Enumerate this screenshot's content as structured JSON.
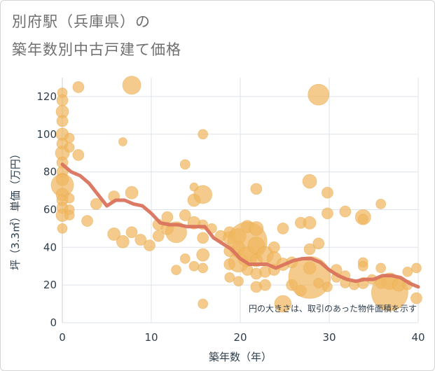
{
  "title_line1": "別府駅（兵庫県）の",
  "title_line2": "築年数別中古戸建て価格",
  "colors": {
    "bubble": "#f0b760",
    "line": "#d9735d",
    "grid": "#dde3ea",
    "axis_text": "#2f3e4d",
    "title": "#6f6f6f"
  },
  "chart_data": {
    "type": "scatter",
    "xlabel": "築年数（年）",
    "ylabel": "坪（3.3㎡）単価（万円）",
    "xlim": [
      0,
      40
    ],
    "ylim": [
      0,
      130
    ],
    "x_ticks": [
      0,
      10,
      20,
      30,
      40
    ],
    "y_ticks": [
      0,
      20,
      40,
      60,
      80,
      100,
      120
    ],
    "grid": true,
    "note": "円の大きさは、取引のあった物件面積を示す",
    "bubbles": [
      {
        "x": 0,
        "y": 122,
        "s": 7
      },
      {
        "x": 0,
        "y": 118,
        "s": 8
      },
      {
        "x": 0,
        "y": 112,
        "s": 9
      },
      {
        "x": 0,
        "y": 107,
        "s": 8
      },
      {
        "x": 0,
        "y": 100,
        "s": 9
      },
      {
        "x": 0,
        "y": 95,
        "s": 8
      },
      {
        "x": 0,
        "y": 90,
        "s": 10
      },
      {
        "x": 0,
        "y": 85,
        "s": 8
      },
      {
        "x": 0,
        "y": 80,
        "s": 8
      },
      {
        "x": 0,
        "y": 76,
        "s": 9
      },
      {
        "x": 0,
        "y": 73,
        "s": 16
      },
      {
        "x": 0,
        "y": 68,
        "s": 9
      },
      {
        "x": 0,
        "y": 65,
        "s": 8
      },
      {
        "x": 0,
        "y": 61,
        "s": 8
      },
      {
        "x": 0,
        "y": 57,
        "s": 9
      },
      {
        "x": 0,
        "y": 50,
        "s": 7
      },
      {
        "x": 0.8,
        "y": 98,
        "s": 7
      },
      {
        "x": 0.8,
        "y": 93,
        "s": 7
      },
      {
        "x": 0.8,
        "y": 66,
        "s": 7
      },
      {
        "x": 0.8,
        "y": 60,
        "s": 7
      },
      {
        "x": 0.8,
        "y": 57,
        "s": 7
      },
      {
        "x": 1.8,
        "y": 125,
        "s": 8
      },
      {
        "x": 1.8,
        "y": 89,
        "s": 8
      },
      {
        "x": 2.8,
        "y": 54,
        "s": 8
      },
      {
        "x": 3.8,
        "y": 63,
        "s": 8
      },
      {
        "x": 5.8,
        "y": 67,
        "s": 8
      },
      {
        "x": 5.8,
        "y": 47,
        "s": 9
      },
      {
        "x": 6.8,
        "y": 96,
        "s": 6
      },
      {
        "x": 6.8,
        "y": 43,
        "s": 9
      },
      {
        "x": 7.8,
        "y": 126,
        "s": 13
      },
      {
        "x": 7.8,
        "y": 69,
        "s": 9
      },
      {
        "x": 7.8,
        "y": 48,
        "s": 8
      },
      {
        "x": 8.8,
        "y": 44,
        "s": 8
      },
      {
        "x": 9.8,
        "y": 41,
        "s": 8
      },
      {
        "x": 10.8,
        "y": 52,
        "s": 8
      },
      {
        "x": 10.8,
        "y": 46,
        "s": 8
      },
      {
        "x": 11.8,
        "y": 56,
        "s": 8
      },
      {
        "x": 11.8,
        "y": 50,
        "s": 9
      },
      {
        "x": 12.8,
        "y": 48,
        "s": 15
      },
      {
        "x": 12.8,
        "y": 28,
        "s": 7
      },
      {
        "x": 13.8,
        "y": 84,
        "s": 7
      },
      {
        "x": 13.8,
        "y": 57,
        "s": 8
      },
      {
        "x": 13.8,
        "y": 34,
        "s": 7
      },
      {
        "x": 14.8,
        "y": 72,
        "s": 6
      },
      {
        "x": 14.8,
        "y": 65,
        "s": 9
      },
      {
        "x": 14.8,
        "y": 53,
        "s": 9
      },
      {
        "x": 14.8,
        "y": 30,
        "s": 7
      },
      {
        "x": 15.8,
        "y": 100,
        "s": 7
      },
      {
        "x": 15.8,
        "y": 68,
        "s": 13
      },
      {
        "x": 15.8,
        "y": 52,
        "s": 7
      },
      {
        "x": 15.8,
        "y": 45,
        "s": 8
      },
      {
        "x": 15.8,
        "y": 36,
        "s": 9
      },
      {
        "x": 15.8,
        "y": 29,
        "s": 7
      },
      {
        "x": 15.8,
        "y": 10,
        "s": 7
      },
      {
        "x": 16.8,
        "y": 50,
        "s": 7
      },
      {
        "x": 17.8,
        "y": 46,
        "s": 8
      },
      {
        "x": 18.8,
        "y": 48,
        "s": 8
      },
      {
        "x": 18.8,
        "y": 45,
        "s": 9
      },
      {
        "x": 18.8,
        "y": 38,
        "s": 8
      },
      {
        "x": 18.8,
        "y": 31,
        "s": 8
      },
      {
        "x": 18.8,
        "y": 24,
        "s": 7
      },
      {
        "x": 19.8,
        "y": 46,
        "s": 11
      },
      {
        "x": 19.8,
        "y": 40,
        "s": 9
      },
      {
        "x": 19.8,
        "y": 32,
        "s": 14
      },
      {
        "x": 19.8,
        "y": 22,
        "s": 7
      },
      {
        "x": 20.8,
        "y": 51,
        "s": 9
      },
      {
        "x": 20.8,
        "y": 43,
        "s": 28
      },
      {
        "x": 20.8,
        "y": 35,
        "s": 14
      },
      {
        "x": 20.8,
        "y": 28,
        "s": 8
      },
      {
        "x": 21.8,
        "y": 71,
        "s": 8
      },
      {
        "x": 21.8,
        "y": 50,
        "s": 10
      },
      {
        "x": 21.8,
        "y": 41,
        "s": 12
      },
      {
        "x": 21.8,
        "y": 33,
        "s": 9
      },
      {
        "x": 21.8,
        "y": 26,
        "s": 8
      },
      {
        "x": 21.8,
        "y": 19,
        "s": 8
      },
      {
        "x": 22.8,
        "y": 36,
        "s": 12
      },
      {
        "x": 22.8,
        "y": 27,
        "s": 8
      },
      {
        "x": 22.8,
        "y": 20,
        "s": 8
      },
      {
        "x": 23.8,
        "y": 40,
        "s": 8
      },
      {
        "x": 23.8,
        "y": 34,
        "s": 10
      },
      {
        "x": 23.8,
        "y": 28,
        "s": 8
      },
      {
        "x": 24.8,
        "y": 50,
        "s": 8
      },
      {
        "x": 24.8,
        "y": 31,
        "s": 9
      },
      {
        "x": 24.8,
        "y": 10,
        "s": 12
      },
      {
        "x": 25.8,
        "y": 32,
        "s": 8
      },
      {
        "x": 25.8,
        "y": 20,
        "s": 8
      },
      {
        "x": 26.8,
        "y": 53,
        "s": 8
      },
      {
        "x": 26.8,
        "y": 17,
        "s": 8
      },
      {
        "x": 27.8,
        "y": 75,
        "s": 10
      },
      {
        "x": 27.8,
        "y": 53,
        "s": 9
      },
      {
        "x": 27.8,
        "y": 39,
        "s": 8
      },
      {
        "x": 27.8,
        "y": 29,
        "s": 9
      },
      {
        "x": 27.8,
        "y": 24,
        "s": 30
      },
      {
        "x": 28.8,
        "y": 121,
        "s": 15
      },
      {
        "x": 28.8,
        "y": 42,
        "s": 8
      },
      {
        "x": 28.8,
        "y": 21,
        "s": 7
      },
      {
        "x": 29.8,
        "y": 69,
        "s": 8
      },
      {
        "x": 29.8,
        "y": 58,
        "s": 8
      },
      {
        "x": 29.8,
        "y": 19,
        "s": 7
      },
      {
        "x": 30.8,
        "y": 28,
        "s": 8
      },
      {
        "x": 30.8,
        "y": 24,
        "s": 7
      },
      {
        "x": 31.8,
        "y": 59,
        "s": 8
      },
      {
        "x": 31.8,
        "y": 25,
        "s": 7
      },
      {
        "x": 31.8,
        "y": 21,
        "s": 7
      },
      {
        "x": 32.8,
        "y": 20,
        "s": 7
      },
      {
        "x": 33.8,
        "y": 56,
        "s": 11
      },
      {
        "x": 33.8,
        "y": 55,
        "s": 7
      },
      {
        "x": 33.8,
        "y": 32,
        "s": 7
      },
      {
        "x": 33.8,
        "y": 30,
        "s": 7
      },
      {
        "x": 33.8,
        "y": 21,
        "s": 8
      },
      {
        "x": 34.8,
        "y": 23,
        "s": 7
      },
      {
        "x": 35.8,
        "y": 63,
        "s": 7
      },
      {
        "x": 35.8,
        "y": 29,
        "s": 7
      },
      {
        "x": 35.8,
        "y": 21,
        "s": 8
      },
      {
        "x": 36.8,
        "y": 22,
        "s": 12
      },
      {
        "x": 36.8,
        "y": 16,
        "s": 26
      },
      {
        "x": 37.8,
        "y": 20,
        "s": 9
      },
      {
        "x": 38.8,
        "y": 27,
        "s": 7
      },
      {
        "x": 38.8,
        "y": 20,
        "s": 7
      },
      {
        "x": 39.8,
        "y": 29,
        "s": 7
      },
      {
        "x": 39.8,
        "y": 13,
        "s": 8
      }
    ],
    "trend_line": {
      "x": [
        0,
        1,
        2,
        3,
        4,
        5,
        6,
        7,
        8,
        9,
        10,
        11,
        12,
        13,
        14,
        15,
        16,
        17,
        18,
        19,
        20,
        21,
        22,
        23,
        24,
        25,
        26,
        27,
        28,
        29,
        30,
        31,
        32,
        33,
        34,
        35,
        36,
        37,
        38,
        39,
        40
      ],
      "y": [
        84,
        80,
        78,
        74,
        68,
        62,
        65,
        65,
        63,
        62,
        58,
        53,
        52,
        52,
        51,
        51,
        51,
        45,
        42,
        39,
        34,
        31,
        31,
        31,
        29,
        31,
        33,
        34,
        34,
        32,
        28,
        25,
        23,
        22,
        23,
        23,
        25,
        25,
        24,
        21,
        19
      ]
    }
  }
}
